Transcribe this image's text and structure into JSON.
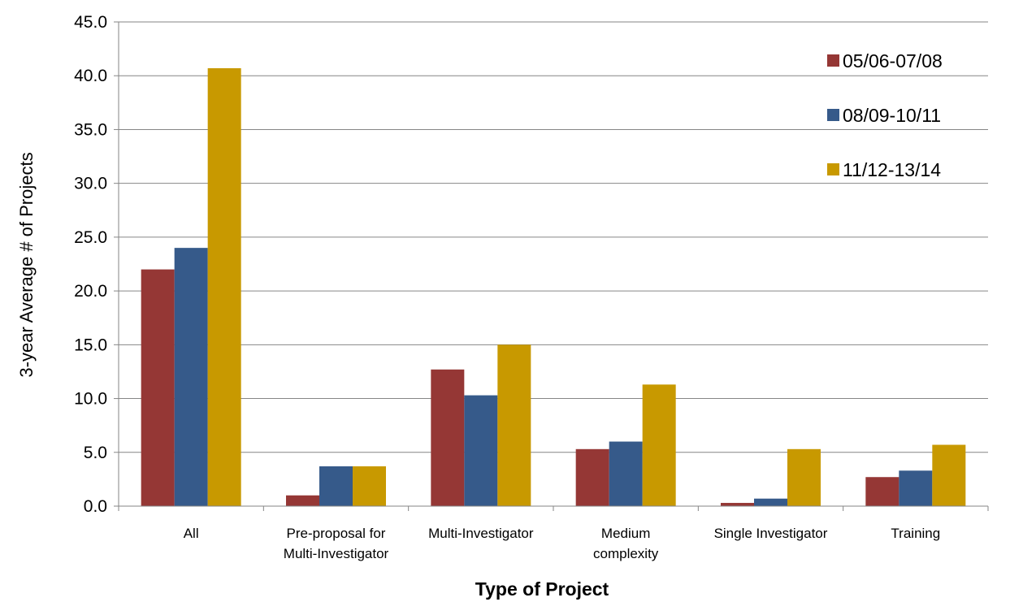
{
  "chart_data": {
    "type": "bar",
    "categories": [
      [
        "All"
      ],
      [
        "Pre-proposal for",
        "Multi-Investigator"
      ],
      [
        "Multi-Investigator"
      ],
      [
        "Medium",
        "complexity"
      ],
      [
        "Single Investigator"
      ],
      [
        "Training"
      ]
    ],
    "series": [
      {
        "name": "05/06-07/08",
        "color": "#953735",
        "values": [
          22.0,
          1.0,
          12.7,
          5.3,
          0.3,
          2.7
        ]
      },
      {
        "name": "08/09-10/11",
        "color": "#365A8A",
        "values": [
          24.0,
          3.7,
          10.3,
          6.0,
          0.7,
          3.3
        ]
      },
      {
        "name": "11/12-13/14",
        "color": "#C89900",
        "values": [
          40.7,
          3.7,
          15.0,
          11.3,
          5.3,
          5.7
        ]
      }
    ],
    "title": "",
    "xlabel": "Type of Project",
    "ylabel": "3-year Average # of Projects",
    "ylim": [
      0,
      45
    ],
    "yticks": [
      "0.0",
      "5.0",
      "10.0",
      "15.0",
      "20.0",
      "25.0",
      "30.0",
      "35.0",
      "40.0",
      "45.0"
    ],
    "grid": true,
    "legend": "top-right"
  }
}
